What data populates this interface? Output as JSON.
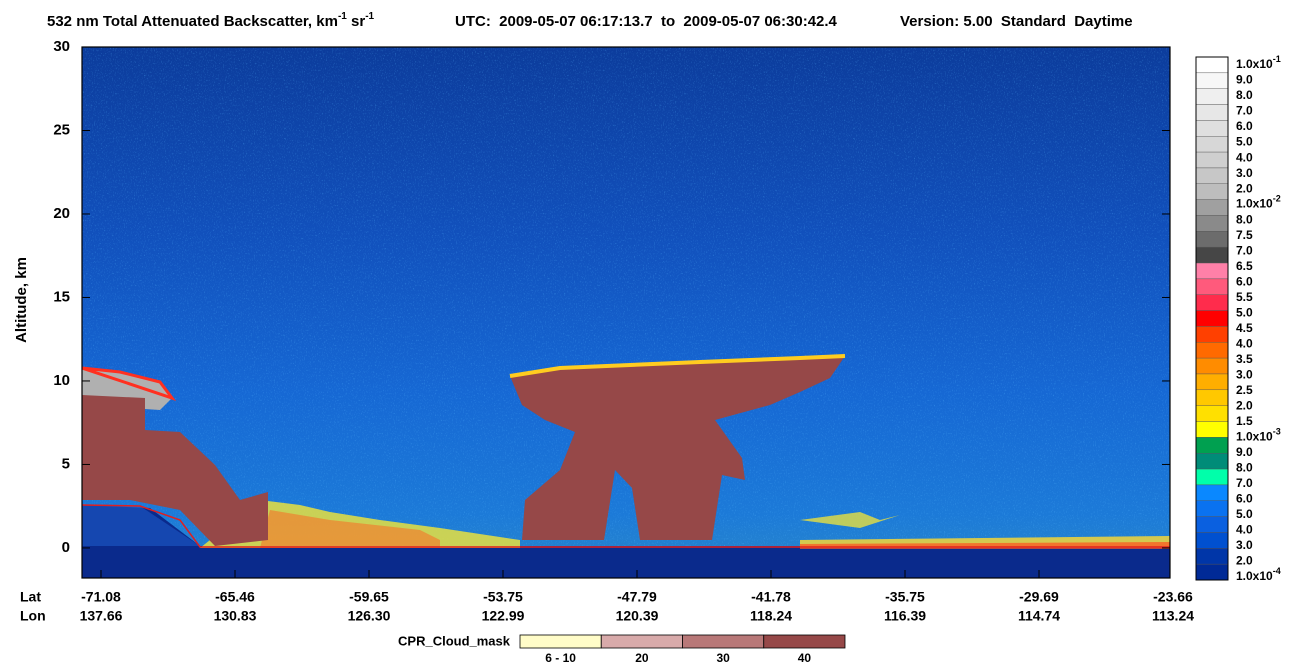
{
  "chart_data": {
    "type": "curtain",
    "title": {
      "text": "532 nm Total Attenuated Backscatter, km",
      "sup1": "-1",
      "unit2": " sr",
      "sup2": "-1"
    },
    "info": "UTC:  2009-05-07 06:17:13.7  to  2009-05-07 06:30:42.4",
    "version": "Version: 5.00  Standard  Daytime",
    "ylabel": "Altitude, km",
    "ylim": [
      -1.8,
      30
    ],
    "yticks": [
      0,
      5,
      10,
      15,
      20,
      25,
      30
    ],
    "x_row_labels": [
      "Lat",
      "Lon"
    ],
    "lat": [
      "-71.08",
      "-65.46",
      "-59.65",
      "-53.75",
      "-47.79",
      "-41.78",
      "-35.75",
      "-29.69",
      "-23.66"
    ],
    "lon": [
      "137.66",
      "130.83",
      "126.30",
      "122.99",
      "120.39",
      "118.24",
      "116.39",
      "114.74",
      "113.24"
    ],
    "colorbar": {
      "labels": [
        {
          "text": "1.0x10",
          "exp": "-1"
        },
        "9.0",
        "8.0",
        "7.0",
        "6.0",
        "5.0",
        "4.0",
        "3.0",
        "2.0",
        {
          "text": "1.0x10",
          "exp": "-2"
        },
        "8.0",
        "7.5",
        "7.0",
        "6.5",
        "6.0",
        "5.5",
        "5.0",
        "4.5",
        "4.0",
        "3.5",
        "3.0",
        "2.5",
        "2.0",
        "1.5",
        {
          "text": "1.0x10",
          "exp": "-3"
        },
        "9.0",
        "8.0",
        "7.0",
        "6.0",
        "5.0",
        "4.0",
        "3.0",
        "2.0",
        {
          "text": "1.0x10",
          "exp": "-4"
        }
      ],
      "colors": [
        "#ffffff",
        "#f7f7f7",
        "#efefef",
        "#e7e7e7",
        "#dfdfdf",
        "#d7d7d7",
        "#cfcfcf",
        "#c7c7c7",
        "#bdbdbd",
        "#a0a0a0",
        "#8a8a8a",
        "#6c6c6c",
        "#464646",
        "#ff80a8",
        "#ff5a7c",
        "#ff2c4c",
        "#ff0000",
        "#ff4000",
        "#ff6a00",
        "#ff8c00",
        "#ffae00",
        "#ffc800",
        "#ffe000",
        "#ffff00",
        "#00a050",
        "#008c78",
        "#00ffaa",
        "#0a88ff",
        "#0a72f0",
        "#0a60e0",
        "#0050d0",
        "#0036a8",
        "#002a96"
      ]
    },
    "cpr_legend": {
      "title": "CPR_Cloud_mask",
      "labels": [
        "6 - 10",
        "20",
        "30",
        "40"
      ],
      "colors": [
        "#fffcc8",
        "#d8aaaa",
        "#b87878",
        "#964848"
      ]
    }
  }
}
